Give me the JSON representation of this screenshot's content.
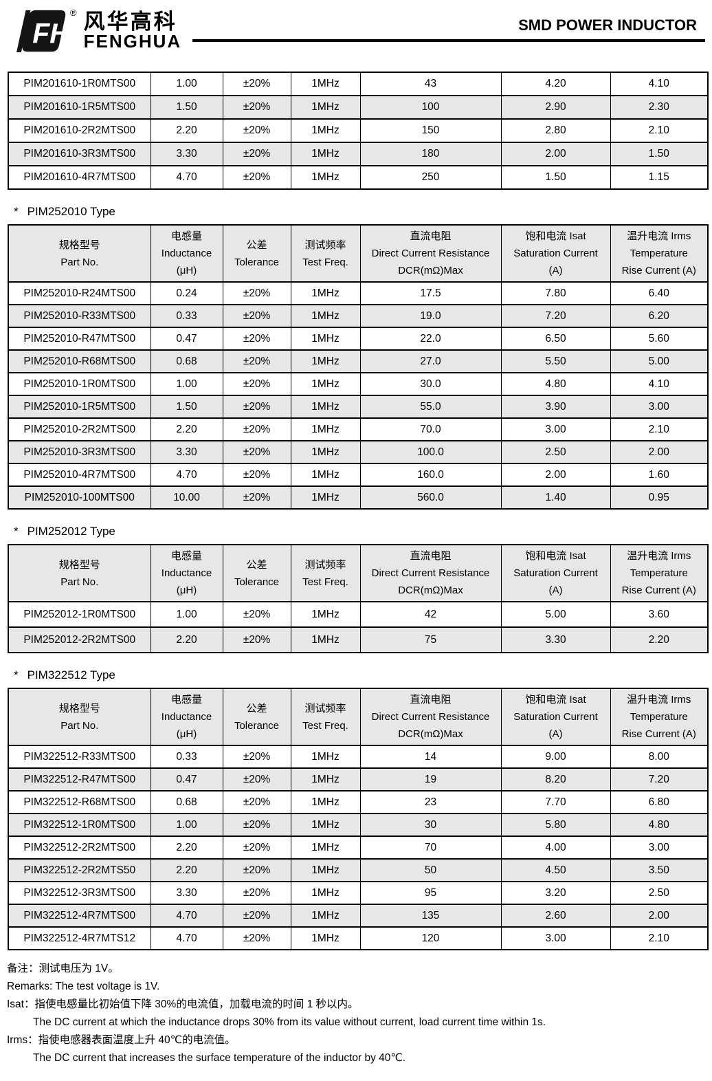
{
  "header": {
    "registered": "®",
    "logo_zh": "风华高科",
    "logo_en": "FENGHUA",
    "logo_mark_letters": "FH",
    "page_title": "SMD POWER INDUCTOR"
  },
  "section_marker": "*",
  "columns": [
    {
      "key": "part",
      "lines": [
        "规格型号",
        "Part No."
      ]
    },
    {
      "key": "inductance",
      "lines": [
        "电感量",
        "Inductance",
        "(μH)"
      ]
    },
    {
      "key": "tolerance",
      "lines": [
        "公差",
        "Tolerance"
      ]
    },
    {
      "key": "freq",
      "lines": [
        "测试频率",
        "Test Freq."
      ]
    },
    {
      "key": "dcr",
      "lines": [
        "直流电阻",
        "Direct Current Resistance",
        "DCR(mΩ)Max"
      ]
    },
    {
      "key": "isat",
      "lines": [
        "饱和电流  Isat",
        "Saturation Current",
        "(A)"
      ]
    },
    {
      "key": "irms",
      "lines": [
        "温升电流  Irms",
        "Temperature",
        "Rise Current (A)"
      ]
    }
  ],
  "tables": [
    {
      "id": "pim201610",
      "title": null,
      "show_header": false,
      "rows": [
        [
          "PIM201610-1R0MTS00",
          "1.00",
          "±20%",
          "1MHz",
          "43",
          "4.20",
          "4.10"
        ],
        [
          "PIM201610-1R5MTS00",
          "1.50",
          "±20%",
          "1MHz",
          "100",
          "2.90",
          "2.30"
        ],
        [
          "PIM201610-2R2MTS00",
          "2.20",
          "±20%",
          "1MHz",
          "150",
          "2.80",
          "2.10"
        ],
        [
          "PIM201610-3R3MTS00",
          "3.30",
          "±20%",
          "1MHz",
          "180",
          "2.00",
          "1.50"
        ],
        [
          "PIM201610-4R7MTS00",
          "4.70",
          "±20%",
          "1MHz",
          "250",
          "1.50",
          "1.15"
        ]
      ]
    },
    {
      "id": "pim252010",
      "title": "PIM252010 Type",
      "show_header": true,
      "rows": [
        [
          "PIM252010-R24MTS00",
          "0.24",
          "±20%",
          "1MHz",
          "17.5",
          "7.80",
          "6.40"
        ],
        [
          "PIM252010-R33MTS00",
          "0.33",
          "±20%",
          "1MHz",
          "19.0",
          "7.20",
          "6.20"
        ],
        [
          "PIM252010-R47MTS00",
          "0.47",
          "±20%",
          "1MHz",
          "22.0",
          "6.50",
          "5.60"
        ],
        [
          "PIM252010-R68MTS00",
          "0.68",
          "±20%",
          "1MHz",
          "27.0",
          "5.50",
          "5.00"
        ],
        [
          "PIM252010-1R0MTS00",
          "1.00",
          "±20%",
          "1MHz",
          "30.0",
          "4.80",
          "4.10"
        ],
        [
          "PIM252010-1R5MTS00",
          "1.50",
          "±20%",
          "1MHz",
          "55.0",
          "3.90",
          "3.00"
        ],
        [
          "PIM252010-2R2MTS00",
          "2.20",
          "±20%",
          "1MHz",
          "70.0",
          "3.00",
          "2.10"
        ],
        [
          "PIM252010-3R3MTS00",
          "3.30",
          "±20%",
          "1MHz",
          "100.0",
          "2.50",
          "2.00"
        ],
        [
          "PIM252010-4R7MTS00",
          "4.70",
          "±20%",
          "1MHz",
          "160.0",
          "2.00",
          "1.60"
        ],
        [
          "PIM252010-100MTS00",
          "10.00",
          "±20%",
          "1MHz",
          "560.0",
          "1.40",
          "0.95"
        ]
      ]
    },
    {
      "id": "pim252012",
      "title": "PIM252012 Type",
      "show_header": true,
      "rows": [
        [
          "PIM252012-1R0MTS00",
          "1.00",
          "±20%",
          "1MHz",
          "42",
          "5.00",
          "3.60"
        ],
        [
          "PIM252012-2R2MTS00",
          "2.20",
          "±20%",
          "1MHz",
          "75",
          "3.30",
          "2.20"
        ]
      ]
    },
    {
      "id": "pim322512",
      "title": "PIM322512 Type",
      "show_header": true,
      "rows": [
        [
          "PIM322512-R33MTS00",
          "0.33",
          "±20%",
          "1MHz",
          "14",
          "9.00",
          "8.00"
        ],
        [
          "PIM322512-R47MTS00",
          "0.47",
          "±20%",
          "1MHz",
          "19",
          "8.20",
          "7.20"
        ],
        [
          "PIM322512-R68MTS00",
          "0.68",
          "±20%",
          "1MHz",
          "23",
          "7.70",
          "6.80"
        ],
        [
          "PIM322512-1R0MTS00",
          "1.00",
          "±20%",
          "1MHz",
          "30",
          "5.80",
          "4.80"
        ],
        [
          "PIM322512-2R2MTS00",
          "2.20",
          "±20%",
          "1MHz",
          "70",
          "4.00",
          "3.00"
        ],
        [
          "PIM322512-2R2MTS50",
          "2.20",
          "±20%",
          "1MHz",
          "50",
          "4.50",
          "3.50"
        ],
        [
          "PIM322512-3R3MTS00",
          "3.30",
          "±20%",
          "1MHz",
          "95",
          "3.20",
          "2.50"
        ],
        [
          "PIM322512-4R7MTS00",
          "4.70",
          "±20%",
          "1MHz",
          "135",
          "2.60",
          "2.00"
        ],
        [
          "PIM322512-4R7MTS12",
          "4.70",
          "±20%",
          "1MHz",
          "120",
          "3.00",
          "2.10"
        ]
      ]
    }
  ],
  "footnotes": [
    {
      "text": "备注：测试电压为 1V。",
      "indent": false
    },
    {
      "text": "Remarks: The test voltage is 1V.",
      "indent": false
    },
    {
      "text": "Isat：指使电感量比初始值下降 30%的电流值，加载电流的时间 1 秒以内。",
      "indent": false
    },
    {
      "text": "The DC current at which the inductance drops 30% from its value without current, load current time within 1s.",
      "indent": true
    },
    {
      "text": "Irms：指使电感器表面温度上升 40℃的电流值。",
      "indent": false
    },
    {
      "text": "The DC current that increases the surface temperature of the inductor by 40℃.",
      "indent": true
    }
  ]
}
